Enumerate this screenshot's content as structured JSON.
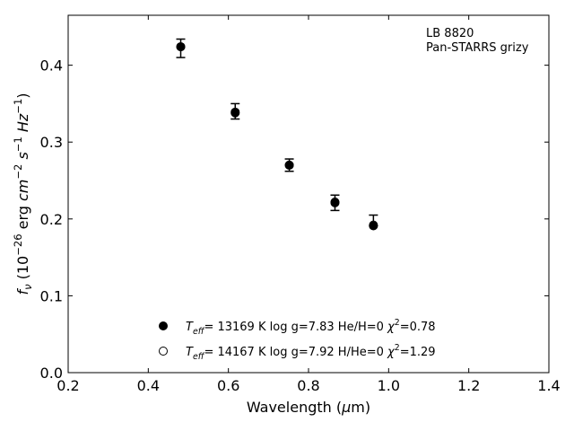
{
  "chart_data": {
    "type": "scatter",
    "xlabel": "Wavelength (μm)",
    "ylabel": "f_ν (10^-26 erg cm^-2 s^-1 Hz^-1)",
    "xlim": [
      0.2,
      1.4
    ],
    "ylim": [
      0.0,
      0.465
    ],
    "xticks": [
      "0.2",
      "0.4",
      "0.6",
      "0.8",
      "1.0",
      "1.2",
      "1.4"
    ],
    "yticks": [
      "0.0",
      "0.1",
      "0.2",
      "0.3",
      "0.4"
    ],
    "grid": false,
    "annotation": [
      "LB 8820",
      "Pan-STARRS grizy"
    ],
    "legend_position": "bottom-center",
    "observed": {
      "x": [
        0.481,
        0.617,
        0.752,
        0.866,
        0.962
      ],
      "y": [
        0.422,
        0.34,
        0.27,
        0.221,
        0.198
      ],
      "yerr": [
        0.012,
        0.01,
        0.008,
        0.01,
        0.007
      ]
    },
    "series": [
      {
        "name": "T_eff= 13169 K  log g=7.83  He/H=0  χ²=0.78",
        "marker": "filled-circle",
        "x": [
          0.481,
          0.617,
          0.752,
          0.866,
          0.962
        ],
        "y": [
          0.424,
          0.338,
          0.27,
          0.221,
          0.191
        ]
      },
      {
        "name": "T_eff= 14167 K  log g=7.92  H/He=0  χ²=1.29",
        "marker": "open-circle",
        "x": [
          0.481,
          0.617,
          0.752,
          0.866,
          0.962
        ],
        "y": [
          0.424,
          0.339,
          0.27,
          0.222,
          0.192
        ]
      }
    ]
  }
}
